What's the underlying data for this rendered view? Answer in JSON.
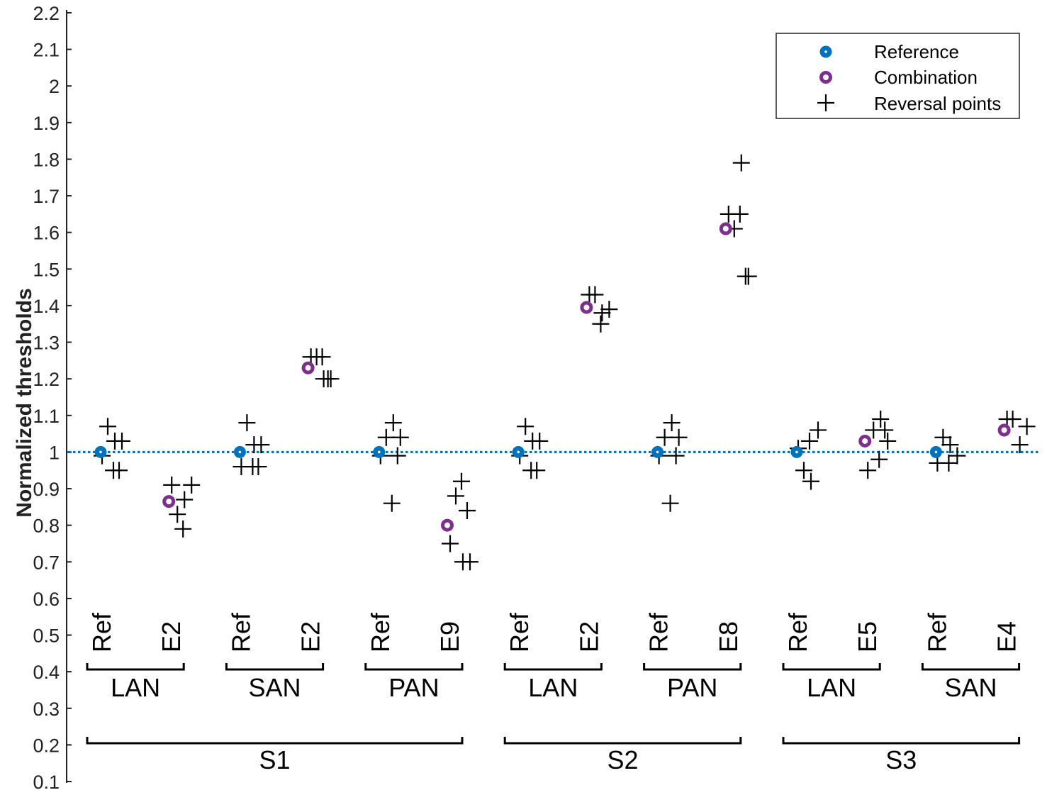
{
  "chart_data": {
    "type": "scatter",
    "ylabel": "Normalized thresholds",
    "ylim": [
      0.1,
      2.2
    ],
    "y_ticks": [
      "0.1",
      "0.2",
      "0.3",
      "0.4",
      "0.5",
      "0.6",
      "0.7",
      "0.8",
      "0.9",
      "1",
      "1.1",
      "1.2",
      "1.3",
      "1.4",
      "1.5",
      "1.6",
      "1.7",
      "1.8",
      "1.9",
      "2",
      "2.1",
      "2.2"
    ],
    "reference_line": 1.0,
    "legend": {
      "placement": "top-right",
      "entries": [
        {
          "label": "Reference",
          "marker": "reference-dot"
        },
        {
          "label": "Combination",
          "marker": "combination-ring"
        },
        {
          "label": "Reversal points",
          "marker": "plus"
        }
      ]
    },
    "colors": {
      "reference": "#0072BD",
      "combination": "#7E2F8E",
      "reversal": "#000000",
      "line": "#0072BD"
    },
    "categories": [
      {
        "label": "Ref",
        "kind": "reference",
        "value": 1.0,
        "reversals": [
          1.07,
          1.03,
          0.99,
          1.03,
          0.95,
          0.95
        ]
      },
      {
        "label": "E2",
        "kind": "combination",
        "value": 0.865,
        "reversals": [
          0.83,
          0.87,
          0.91,
          0.91,
          0.79
        ]
      },
      {
        "label": "Ref",
        "kind": "reference",
        "value": 1.0,
        "reversals": [
          1.08,
          1.02,
          0.96,
          1.02,
          0.96,
          0.96
        ]
      },
      {
        "label": "E2",
        "kind": "combination",
        "value": 1.23,
        "reversals": [
          1.26,
          1.2,
          1.26,
          1.2,
          1.26,
          1.2
        ]
      },
      {
        "label": "Ref",
        "kind": "reference",
        "value": 1.0,
        "reversals": [
          1.04,
          1.08,
          0.99,
          1.04,
          0.86,
          0.99
        ]
      },
      {
        "label": "E9",
        "kind": "combination",
        "value": 0.8,
        "reversals": [
          0.88,
          0.7,
          0.75,
          0.7,
          0.92,
          0.84
        ]
      },
      {
        "label": "Ref",
        "kind": "reference",
        "value": 1.0,
        "reversals": [
          1.07,
          1.03,
          0.99,
          1.03,
          0.95,
          0.95
        ]
      },
      {
        "label": "E2",
        "kind": "combination",
        "value": 1.395,
        "reversals": [
          1.43,
          1.38,
          1.43,
          1.39,
          1.35
        ]
      },
      {
        "label": "Ref",
        "kind": "reference",
        "value": 1.0,
        "reversals": [
          1.04,
          1.08,
          0.99,
          1.04,
          0.86,
          0.99
        ]
      },
      {
        "label": "E8",
        "kind": "combination",
        "value": 1.61,
        "reversals": [
          1.61,
          1.79,
          1.65,
          1.48,
          1.65,
          1.48
        ]
      },
      {
        "label": "Ref",
        "kind": "reference",
        "value": 1.0,
        "reversals": [
          0.95,
          0.92,
          1.01,
          1.06,
          1.03
        ]
      },
      {
        "label": "E5",
        "kind": "combination",
        "value": 1.03,
        "reversals": [
          1.06,
          1.09,
          0.95,
          1.03,
          0.98,
          1.06
        ]
      },
      {
        "label": "Ref",
        "kind": "reference",
        "value": 1.0,
        "reversals": [
          1.04,
          1.02,
          0.97,
          0.99,
          0.97
        ]
      },
      {
        "label": "E4",
        "kind": "combination",
        "value": 1.06,
        "reversals": [
          1.09,
          1.02,
          1.09,
          1.07
        ]
      }
    ],
    "groups": [
      {
        "label": "LAN",
        "span": [
          0,
          1
        ]
      },
      {
        "label": "SAN",
        "span": [
          2,
          3
        ]
      },
      {
        "label": "PAN",
        "span": [
          4,
          5
        ]
      },
      {
        "label": "LAN",
        "span": [
          6,
          7
        ]
      },
      {
        "label": "PAN",
        "span": [
          8,
          9
        ]
      },
      {
        "label": "LAN",
        "span": [
          10,
          11
        ]
      },
      {
        "label": "SAN",
        "span": [
          12,
          13
        ]
      }
    ],
    "subjects": [
      {
        "label": "S1",
        "span": [
          0,
          5
        ]
      },
      {
        "label": "S2",
        "span": [
          6,
          9
        ]
      },
      {
        "label": "S3",
        "span": [
          10,
          13
        ]
      }
    ]
  }
}
